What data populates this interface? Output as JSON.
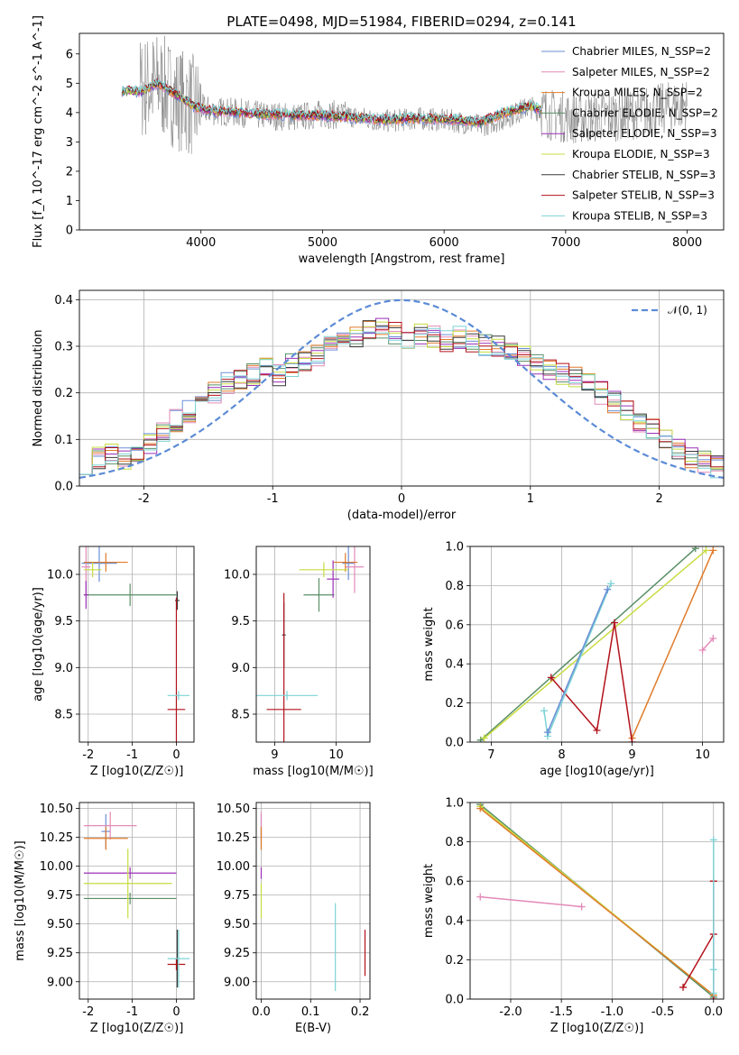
{
  "title": "PLATE=0498, MJD=51984, FIBERID=0294, z=0.141",
  "chart_data": [
    {
      "id": "spectrum",
      "type": "line",
      "title": "PLATE=0498, MJD=51984, FIBERID=0294, z=0.141",
      "xlabel": "wavelength [Angstrom, rest frame]",
      "ylabel": "Flux [f_λ 10^-17 erg cm^-2 s^-1 A^-1]",
      "xlim": [
        3000,
        8300
      ],
      "ylim": [
        0,
        6.7
      ],
      "xticks": [
        4000,
        5000,
        6000,
        7000,
        8000
      ],
      "yticks": [
        0,
        1,
        2,
        3,
        4,
        5,
        6
      ],
      "grid": false,
      "legend": "top-right",
      "legend_entries": [
        {
          "label": "Chabrier MILES, N_SSP=2",
          "color": "#6a8fd6"
        },
        {
          "label": "Salpeter MILES, N_SSP=2",
          "color": "#e38ab8"
        },
        {
          "label": "Kroupa MILES, N_SSP=2",
          "color": "#e07b2a"
        },
        {
          "label": "Chabrier ELODIE, N_SSP=2",
          "color": "#5a8f67"
        },
        {
          "label": "Salpeter ELODIE, N_SSP=3",
          "color": "#9b30b8"
        },
        {
          "label": "Kroupa ELODIE, N_SSP=3",
          "color": "#c8dc40"
        },
        {
          "label": "Chabrier STELIB, N_SSP=3",
          "color": "#3a3a3a"
        },
        {
          "label": "Salpeter STELIB, N_SSP=3",
          "color": "#b3121b"
        },
        {
          "label": "Kroupa STELIB, N_SSP=3",
          "color": "#7dd3d6"
        }
      ],
      "series_observed": {
        "color": "#808080",
        "x": [
          3350,
          3500,
          3650,
          3800,
          3950,
          4100,
          4300,
          4500,
          4800,
          5000,
          5200,
          5500,
          5800,
          6100,
          6300,
          6500,
          6700,
          6900,
          7100,
          7400,
          7700,
          8000
        ],
        "y": [
          4.8,
          4.8,
          5.0,
          4.5,
          4.2,
          4.05,
          4.0,
          3.9,
          3.85,
          3.95,
          3.9,
          3.7,
          3.8,
          3.7,
          3.55,
          3.8,
          4.2,
          3.9,
          3.8,
          3.9,
          4.05,
          4.3
        ]
      },
      "series_model": {
        "x": [
          3350,
          3500,
          3650,
          3800,
          3950,
          4100,
          4300,
          4500,
          4800,
          5000,
          5200,
          5500,
          5800,
          6100,
          6300,
          6500,
          6700,
          6800
        ],
        "y": [
          4.75,
          4.7,
          5.0,
          4.6,
          4.2,
          4.05,
          4.0,
          3.95,
          3.9,
          3.9,
          3.85,
          3.75,
          3.8,
          3.75,
          3.65,
          4.0,
          4.2,
          4.1
        ]
      }
    },
    {
      "id": "residuals",
      "type": "bar",
      "xlabel": "(data-model)/error",
      "ylabel": "Normed distribution",
      "xlim": [
        -2.5,
        2.5
      ],
      "ylim": [
        0,
        0.42
      ],
      "xticks": [
        -2,
        -1,
        0,
        1,
        2
      ],
      "yticks": [
        0.0,
        0.1,
        0.2,
        0.3,
        0.4
      ],
      "grid": true,
      "legend": "top-right",
      "gaussian_label": "𝒩(0, 1)",
      "gaussian_color": "#5b8bd6",
      "bin_width": 0.1,
      "base_hist": [
        0.05,
        0.06,
        0.07,
        0.06,
        0.07,
        0.09,
        0.12,
        0.14,
        0.16,
        0.18,
        0.2,
        0.22,
        0.23,
        0.24,
        0.25,
        0.24,
        0.26,
        0.27,
        0.28,
        0.3,
        0.31,
        0.32,
        0.33,
        0.34,
        0.33,
        0.32,
        0.33,
        0.32,
        0.31,
        0.32,
        0.31,
        0.3,
        0.3,
        0.29,
        0.28,
        0.26,
        0.25,
        0.24,
        0.23,
        0.22,
        0.2,
        0.18,
        0.16,
        0.14,
        0.12,
        0.1,
        0.08,
        0.06,
        0.05,
        0.04
      ]
    },
    {
      "id": "age-vs-Z",
      "type": "scatter",
      "xlabel": "Z [log10(Z/Z☉)]",
      "ylabel": "age  [log10(age/yr)]",
      "xlim": [
        -2.2,
        0.4
      ],
      "ylim": [
        8.2,
        10.3
      ],
      "xticks": [
        -2,
        -1,
        0
      ],
      "yticks": [
        8.5,
        9.0,
        9.5,
        10.0
      ],
      "grid": true,
      "points": [
        {
          "x": -1.75,
          "y": 10.12,
          "xerr": 0.4,
          "yerr": 0.2,
          "color": "#6a8fd6"
        },
        {
          "x": -2.05,
          "y": 10.08,
          "xerr": 0.1,
          "yerr": 0.3,
          "color": "#e38ab8"
        },
        {
          "x": -1.6,
          "y": 10.13,
          "xerr": 0.5,
          "yerr": 0.1,
          "color": "#e07b2a"
        },
        {
          "x": -1.05,
          "y": 9.78,
          "xerr": 1.05,
          "yerr": 0.12,
          "color": "#5a8f67"
        },
        {
          "x": -2.05,
          "y": 9.78,
          "xerr": 0.05,
          "yerr": 0.15,
          "color": "#9b30b8"
        },
        {
          "x": -1.9,
          "y": 10.05,
          "xerr": 0.2,
          "yerr": 0.08,
          "color": "#c8dc40"
        },
        {
          "x": 0.02,
          "y": 9.72,
          "xerr": 0.05,
          "yerr": 0.1,
          "color": "#3a3a3a"
        },
        {
          "x": 0.0,
          "y": 8.55,
          "xerr": 0.2,
          "yerr": 1.2,
          "color": "#b3121b"
        },
        {
          "x": 0.05,
          "y": 8.7,
          "xerr": 0.25,
          "yerr": 0.05,
          "color": "#7dd3d6"
        }
      ]
    },
    {
      "id": "age-vs-mass",
      "type": "scatter",
      "xlabel": "mass [log10(M/M☉)]",
      "ylabel": "",
      "xlim": [
        8.7,
        10.55
      ],
      "ylim": [
        8.2,
        10.3
      ],
      "xticks": [
        9,
        10
      ],
      "yticks": [
        8.5,
        9.0,
        9.5,
        10.0
      ],
      "grid": true,
      "points": [
        {
          "x": 10.2,
          "y": 10.12,
          "xerr": 0.1,
          "yerr": 0.18,
          "color": "#6a8fd6"
        },
        {
          "x": 10.3,
          "y": 10.08,
          "xerr": 0.15,
          "yerr": 0.28,
          "color": "#e38ab8"
        },
        {
          "x": 10.15,
          "y": 10.13,
          "xerr": 0.2,
          "yerr": 0.1,
          "color": "#e07b2a"
        },
        {
          "x": 9.72,
          "y": 9.78,
          "xerr": 0.25,
          "yerr": 0.18,
          "color": "#5a8f67"
        },
        {
          "x": 9.95,
          "y": 9.95,
          "xerr": 0.1,
          "yerr": 0.2,
          "color": "#9b30b8"
        },
        {
          "x": 9.8,
          "y": 10.05,
          "xerr": 0.4,
          "yerr": 0.08,
          "color": "#c8dc40"
        },
        {
          "x": 9.15,
          "y": 9.35,
          "xerr": 0.03,
          "yerr": 0.35,
          "color": "#3a3a3a"
        },
        {
          "x": 9.15,
          "y": 8.55,
          "xerr": 0.28,
          "yerr": 1.25,
          "color": "#b3121b"
        },
        {
          "x": 9.2,
          "y": 8.7,
          "xerr": 0.5,
          "yerr": 0.05,
          "color": "#7dd3d6"
        }
      ]
    },
    {
      "id": "weight-vs-age",
      "type": "line",
      "xlabel": "age  [log10(age/yr)]",
      "ylabel": "mass weight",
      "xlim": [
        6.7,
        10.3
      ],
      "ylim": [
        0,
        1.0
      ],
      "xticks": [
        7,
        8,
        9,
        10
      ],
      "yticks": [
        0.0,
        0.2,
        0.4,
        0.6,
        0.8,
        1.0
      ],
      "grid": true,
      "series": [
        {
          "color": "#5a8f67",
          "x": [
            6.85,
            9.9
          ],
          "y": [
            0.01,
            0.99
          ]
        },
        {
          "color": "#c8dc40",
          "x": [
            6.9,
            10.05
          ],
          "y": [
            0.02,
            0.98
          ]
        },
        {
          "color": "#e07b2a",
          "x": [
            9.0,
            10.15
          ],
          "y": [
            0.02,
            0.98
          ]
        },
        {
          "color": "#e38ab8",
          "x": [
            10.0,
            10.15
          ],
          "y": [
            0.47,
            0.53
          ]
        },
        {
          "color": "#b3121b",
          "x": [
            7.85,
            8.5,
            8.75,
            9.0
          ],
          "y": [
            0.33,
            0.06,
            0.61,
            0.0
          ]
        },
        {
          "color": "#7dd3d6",
          "x": [
            7.75,
            7.8,
            8.7
          ],
          "y": [
            0.16,
            0.03,
            0.81
          ]
        },
        {
          "color": "#6a8fd6",
          "x": [
            7.8,
            8.65
          ],
          "y": [
            0.05,
            0.78
          ]
        }
      ]
    },
    {
      "id": "mass-vs-Z",
      "type": "scatter",
      "xlabel": "Z [log10(Z/Z☉)]",
      "ylabel": "mass [log10(M/M☉)]",
      "xlim": [
        -2.2,
        0.4
      ],
      "ylim": [
        8.85,
        10.55
      ],
      "xticks": [
        -2,
        -1,
        0
      ],
      "yticks": [
        9.0,
        9.25,
        9.5,
        9.75,
        10.0,
        10.25,
        10.5
      ],
      "grid": true,
      "points": [
        {
          "x": -1.6,
          "y": 10.3,
          "xerr": 0.1,
          "yerr": 0.15,
          "color": "#6a8fd6"
        },
        {
          "x": -1.5,
          "y": 10.35,
          "xerr": 0.6,
          "yerr": 0.12,
          "color": "#e38ab8"
        },
        {
          "x": -1.6,
          "y": 10.24,
          "xerr": 0.5,
          "yerr": 0.1,
          "color": "#e07b2a"
        },
        {
          "x": -1.05,
          "y": 9.72,
          "xerr": 1.05,
          "yerr": 0.05,
          "color": "#5a8f67"
        },
        {
          "x": -1.05,
          "y": 9.94,
          "xerr": 1.05,
          "yerr": 0.05,
          "color": "#9b30b8"
        },
        {
          "x": -1.1,
          "y": 9.85,
          "xerr": 1.0,
          "yerr": 0.3,
          "color": "#c8dc40"
        },
        {
          "x": 0.02,
          "y": 9.2,
          "xerr": 0.05,
          "yerr": 0.25,
          "color": "#3a3a3a"
        },
        {
          "x": 0.0,
          "y": 9.15,
          "xerr": 0.2,
          "yerr": 0.05,
          "color": "#b3121b"
        },
        {
          "x": 0.05,
          "y": 9.2,
          "xerr": 0.25,
          "yerr": 0.25,
          "color": "#7dd3d6"
        }
      ]
    },
    {
      "id": "mass-vs-EBV",
      "type": "scatter",
      "xlabel": "E(B-V)",
      "ylabel": "",
      "xlim": [
        -0.01,
        0.22
      ],
      "ylim": [
        8.85,
        10.55
      ],
      "xticks": [
        0.0,
        0.1,
        0.2
      ],
      "yticks": [
        9.0,
        9.25,
        9.5,
        9.75,
        10.0,
        10.25,
        10.5
      ],
      "grid": true,
      "points": [
        {
          "x": 0.0,
          "y": 10.3,
          "yerr": 0.15,
          "color": "#6a8fd6"
        },
        {
          "x": 0.0,
          "y": 10.35,
          "yerr": 0.12,
          "color": "#e38ab8"
        },
        {
          "x": 0.0,
          "y": 10.24,
          "yerr": 0.1,
          "color": "#e07b2a"
        },
        {
          "x": 0.0,
          "y": 9.94,
          "yerr": 0.05,
          "color": "#9b30b8"
        },
        {
          "x": 0.0,
          "y": 9.7,
          "yerr": 0.15,
          "color": "#c8dc40"
        },
        {
          "x": 0.15,
          "y": 9.3,
          "yerr": 0.38,
          "color": "#7dd3d6"
        },
        {
          "x": 0.21,
          "y": 9.25,
          "yerr": 0.2,
          "color": "#b3121b"
        }
      ]
    },
    {
      "id": "weight-vs-Z",
      "type": "line",
      "xlabel": "Z [log10(Z/Z☉)]",
      "ylabel": "mass weight",
      "xlim": [
        -2.4,
        0.1
      ],
      "ylim": [
        0,
        1.0
      ],
      "xticks": [
        -2.0,
        -1.5,
        -1.0,
        -0.5,
        0.0
      ],
      "yticks": [
        0.0,
        0.2,
        0.4,
        0.6,
        0.8,
        1.0
      ],
      "grid": true,
      "series": [
        {
          "color": "#5a8f67",
          "x": [
            -2.3,
            0.0
          ],
          "y": [
            0.99,
            0.01
          ]
        },
        {
          "color": "#c8dc40",
          "x": [
            -2.3,
            0.0
          ],
          "y": [
            0.98,
            0.02
          ]
        },
        {
          "color": "#e07b2a",
          "x": [
            -2.3,
            0.0
          ],
          "y": [
            0.97,
            0.02
          ]
        },
        {
          "color": "#e38ab8",
          "x": [
            -2.3,
            -1.3
          ],
          "y": [
            0.52,
            0.47
          ]
        },
        {
          "color": "#b3121b",
          "x": [
            -0.3,
            0.0,
            0.0,
            0.0
          ],
          "y": [
            0.06,
            0.33,
            0.6,
            0.0
          ]
        },
        {
          "color": "#7dd3d6",
          "x": [
            0.0,
            0.0,
            0.0
          ],
          "y": [
            0.81,
            0.15,
            0.03
          ]
        }
      ]
    }
  ]
}
